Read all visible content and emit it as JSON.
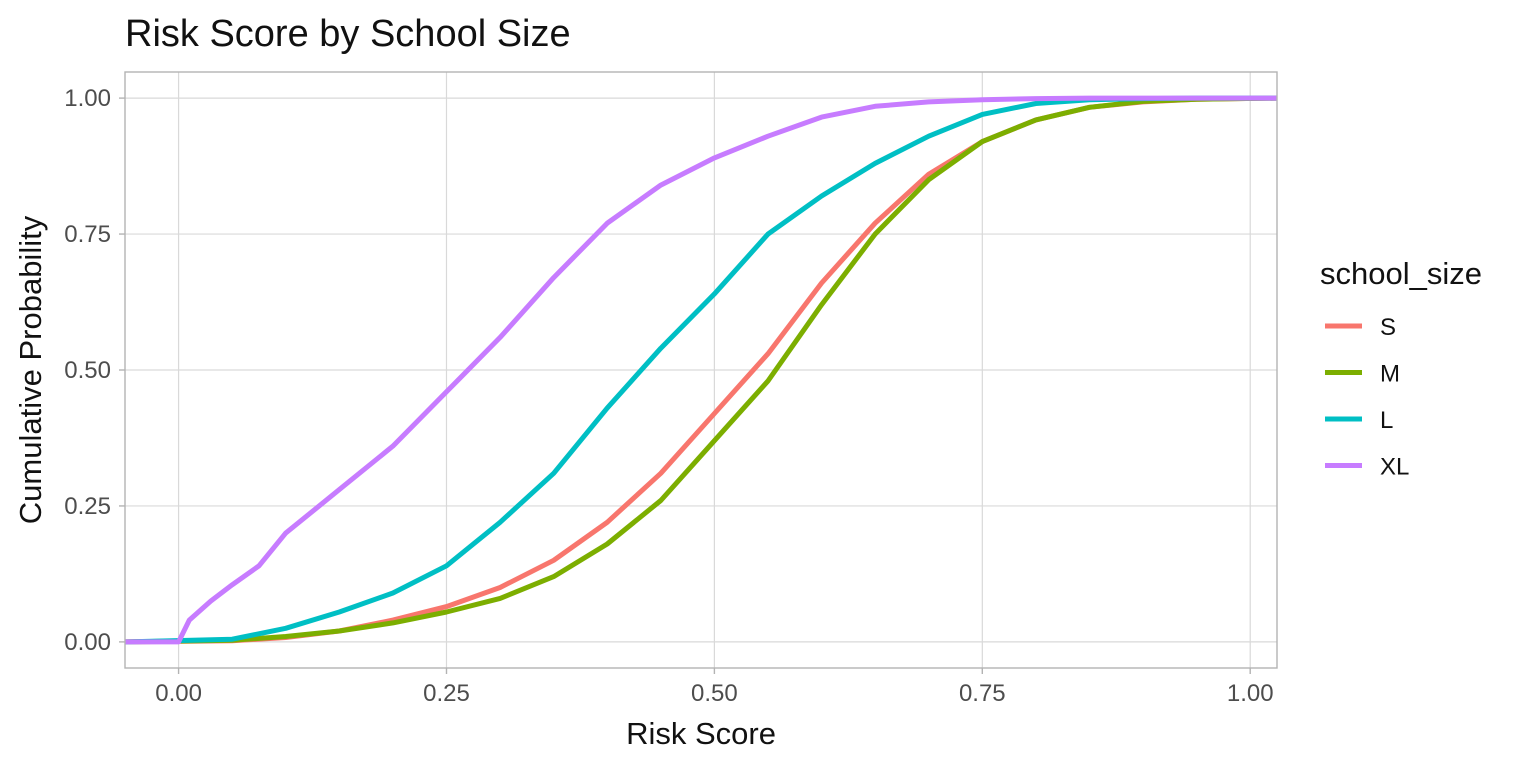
{
  "chart_data": {
    "type": "line",
    "title": "Risk Score by School Size",
    "xlabel": "Risk Score",
    "ylabel": "Cumulative Probability",
    "xlim": [
      -0.05,
      1.025
    ],
    "ylim": [
      -0.048,
      1.048
    ],
    "x_ticks": [
      0.0,
      0.25,
      0.5,
      0.75,
      1.0
    ],
    "x_tick_labels": [
      "0.00",
      "0.25",
      "0.50",
      "0.75",
      "1.00"
    ],
    "y_ticks": [
      0.0,
      0.25,
      0.5,
      0.75,
      1.0
    ],
    "y_tick_labels": [
      "0.00",
      "0.25",
      "0.50",
      "0.75",
      "1.00"
    ],
    "grid": true,
    "legend": {
      "title": "school_size",
      "position": "right"
    },
    "series": [
      {
        "name": "S",
        "color": "#F8766D",
        "x": [
          -0.05,
          0.05,
          0.1,
          0.15,
          0.2,
          0.25,
          0.3,
          0.35,
          0.4,
          0.45,
          0.5,
          0.55,
          0.6,
          0.65,
          0.7,
          0.75,
          0.8,
          0.85,
          0.9,
          0.95,
          1.025
        ],
        "y": [
          0,
          0.002,
          0.008,
          0.02,
          0.04,
          0.065,
          0.1,
          0.15,
          0.22,
          0.31,
          0.42,
          0.53,
          0.66,
          0.77,
          0.86,
          0.92,
          0.96,
          0.983,
          0.993,
          0.998,
          1.0
        ]
      },
      {
        "name": "M",
        "color": "#7CAE00",
        "x": [
          -0.05,
          0.05,
          0.1,
          0.15,
          0.2,
          0.25,
          0.3,
          0.35,
          0.4,
          0.45,
          0.5,
          0.55,
          0.6,
          0.65,
          0.7,
          0.75,
          0.8,
          0.85,
          0.9,
          0.95,
          1.025
        ],
        "y": [
          0,
          0.003,
          0.01,
          0.02,
          0.035,
          0.055,
          0.08,
          0.12,
          0.18,
          0.26,
          0.37,
          0.48,
          0.62,
          0.75,
          0.85,
          0.92,
          0.96,
          0.983,
          0.994,
          0.998,
          1.0
        ]
      },
      {
        "name": "L",
        "color": "#00BFC4",
        "x": [
          -0.05,
          0.05,
          0.1,
          0.15,
          0.2,
          0.25,
          0.3,
          0.35,
          0.4,
          0.45,
          0.5,
          0.55,
          0.6,
          0.65,
          0.7,
          0.75,
          0.8,
          0.85,
          0.9,
          0.95,
          1.025
        ],
        "y": [
          0,
          0.005,
          0.025,
          0.055,
          0.09,
          0.14,
          0.22,
          0.31,
          0.43,
          0.54,
          0.64,
          0.75,
          0.82,
          0.88,
          0.93,
          0.97,
          0.99,
          0.997,
          0.999,
          1.0,
          1.0
        ]
      },
      {
        "name": "XL",
        "color": "#C77CFF",
        "x": [
          -0.05,
          0.0,
          0.01,
          0.03,
          0.05,
          0.075,
          0.1,
          0.15,
          0.2,
          0.25,
          0.3,
          0.35,
          0.4,
          0.45,
          0.5,
          0.55,
          0.6,
          0.65,
          0.7,
          0.75,
          0.8,
          0.85,
          0.9,
          1.025
        ],
        "y": [
          0,
          0.0,
          0.04,
          0.075,
          0.105,
          0.14,
          0.2,
          0.28,
          0.36,
          0.46,
          0.56,
          0.67,
          0.77,
          0.84,
          0.89,
          0.93,
          0.965,
          0.985,
          0.993,
          0.997,
          0.999,
          1.0,
          1.0,
          1.0
        ]
      }
    ]
  }
}
